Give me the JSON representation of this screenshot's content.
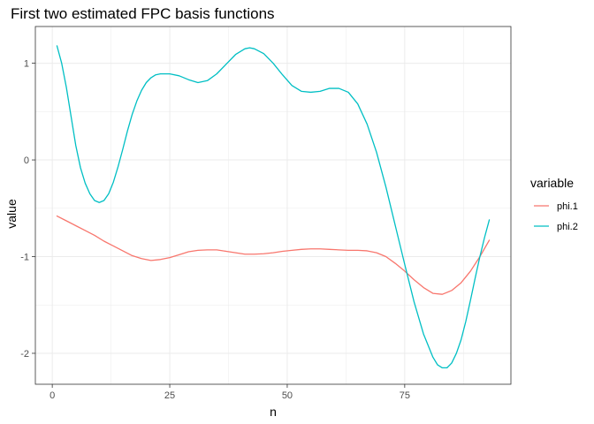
{
  "chart_data": {
    "type": "line",
    "title": "First two estimated FPC basis functions",
    "xlabel": "n",
    "ylabel": "value",
    "xlim": [
      -3.6,
      97.6
    ],
    "ylim": [
      -2.32,
      1.38
    ],
    "x_ticks": [
      0,
      25,
      50,
      75
    ],
    "y_ticks": [
      1,
      0,
      -1,
      -2
    ],
    "grid": true,
    "legend": {
      "title": "variable",
      "position": "right"
    },
    "series": [
      {
        "name": "phi.1",
        "color": "#F8766D",
        "points": [
          [
            1,
            -0.58
          ],
          [
            3,
            -0.63
          ],
          [
            5,
            -0.68
          ],
          [
            7,
            -0.73
          ],
          [
            9,
            -0.78
          ],
          [
            11,
            -0.84
          ],
          [
            13,
            -0.89
          ],
          [
            15,
            -0.94
          ],
          [
            17,
            -0.99
          ],
          [
            19,
            -1.02
          ],
          [
            21,
            -1.04
          ],
          [
            23,
            -1.03
          ],
          [
            25,
            -1.01
          ],
          [
            27,
            -0.98
          ],
          [
            29,
            -0.95
          ],
          [
            31,
            -0.935
          ],
          [
            33,
            -0.93
          ],
          [
            35,
            -0.93
          ],
          [
            37,
            -0.945
          ],
          [
            39,
            -0.96
          ],
          [
            41,
            -0.975
          ],
          [
            43,
            -0.975
          ],
          [
            45,
            -0.97
          ],
          [
            47,
            -0.96
          ],
          [
            49,
            -0.945
          ],
          [
            51,
            -0.935
          ],
          [
            53,
            -0.925
          ],
          [
            55,
            -0.92
          ],
          [
            57,
            -0.92
          ],
          [
            59,
            -0.925
          ],
          [
            61,
            -0.93
          ],
          [
            63,
            -0.935
          ],
          [
            65,
            -0.935
          ],
          [
            67,
            -0.94
          ],
          [
            69,
            -0.96
          ],
          [
            71,
            -1.0
          ],
          [
            73,
            -1.07
          ],
          [
            75,
            -1.15
          ],
          [
            77,
            -1.24
          ],
          [
            79,
            -1.32
          ],
          [
            81,
            -1.38
          ],
          [
            83,
            -1.39
          ],
          [
            85,
            -1.35
          ],
          [
            87,
            -1.27
          ],
          [
            89,
            -1.15
          ],
          [
            91,
            -1.0
          ],
          [
            93,
            -0.83
          ]
        ]
      },
      {
        "name": "phi.2",
        "color": "#00BFC4",
        "points": [
          [
            1,
            1.18
          ],
          [
            2,
            1.0
          ],
          [
            3,
            0.75
          ],
          [
            4,
            0.45
          ],
          [
            5,
            0.15
          ],
          [
            6,
            -0.08
          ],
          [
            7,
            -0.24
          ],
          [
            8,
            -0.35
          ],
          [
            9,
            -0.42
          ],
          [
            10,
            -0.44
          ],
          [
            11,
            -0.42
          ],
          [
            12,
            -0.35
          ],
          [
            13,
            -0.23
          ],
          [
            14,
            -0.07
          ],
          [
            15,
            0.11
          ],
          [
            16,
            0.3
          ],
          [
            17,
            0.47
          ],
          [
            18,
            0.61
          ],
          [
            19,
            0.72
          ],
          [
            20,
            0.8
          ],
          [
            21,
            0.85
          ],
          [
            22,
            0.88
          ],
          [
            23,
            0.89
          ],
          [
            24,
            0.89
          ],
          [
            25,
            0.89
          ],
          [
            27,
            0.87
          ],
          [
            29,
            0.83
          ],
          [
            31,
            0.8
          ],
          [
            33,
            0.82
          ],
          [
            35,
            0.89
          ],
          [
            37,
            0.99
          ],
          [
            39,
            1.09
          ],
          [
            41,
            1.15
          ],
          [
            42,
            1.16
          ],
          [
            43,
            1.15
          ],
          [
            45,
            1.1
          ],
          [
            47,
            1.0
          ],
          [
            49,
            0.88
          ],
          [
            51,
            0.77
          ],
          [
            53,
            0.71
          ],
          [
            55,
            0.7
          ],
          [
            57,
            0.71
          ],
          [
            59,
            0.74
          ],
          [
            61,
            0.74
          ],
          [
            63,
            0.7
          ],
          [
            65,
            0.58
          ],
          [
            67,
            0.37
          ],
          [
            69,
            0.08
          ],
          [
            71,
            -0.28
          ],
          [
            73,
            -0.68
          ],
          [
            75,
            -1.08
          ],
          [
            77,
            -1.47
          ],
          [
            79,
            -1.8
          ],
          [
            81,
            -2.04
          ],
          [
            82,
            -2.12
          ],
          [
            83,
            -2.15
          ],
          [
            84,
            -2.15
          ],
          [
            85,
            -2.1
          ],
          [
            86,
            -2.0
          ],
          [
            87,
            -1.86
          ],
          [
            88,
            -1.67
          ],
          [
            89,
            -1.45
          ],
          [
            90,
            -1.22
          ],
          [
            91,
            -1.0
          ],
          [
            92,
            -0.8
          ],
          [
            93,
            -0.62
          ]
        ]
      }
    ]
  }
}
